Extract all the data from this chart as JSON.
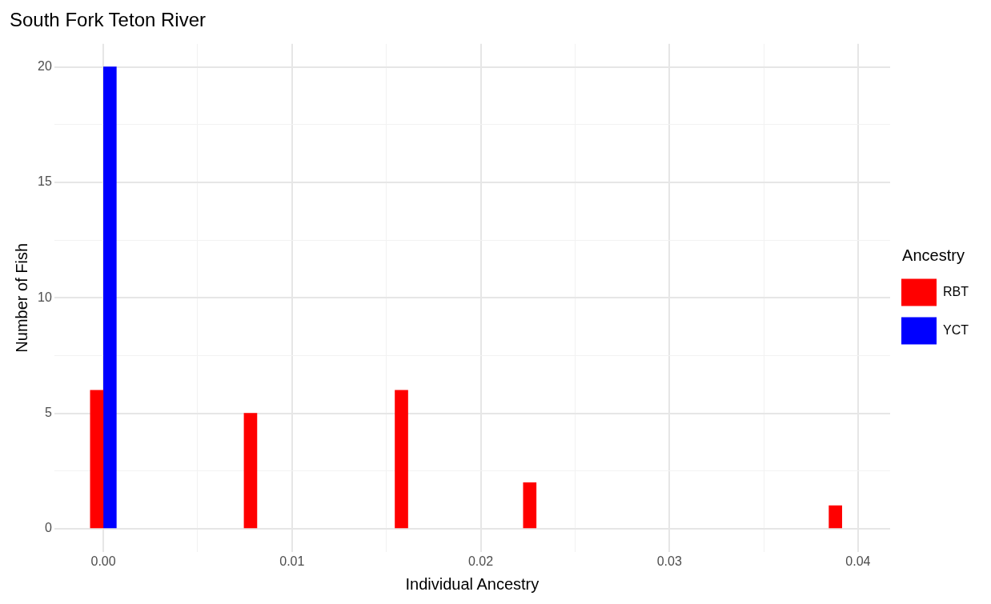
{
  "chart_data": {
    "type": "bar",
    "title": "South Fork Teton River",
    "xlabel": "Individual Ancestry",
    "ylabel": "Number of Fish",
    "legend_title": "Ancestry",
    "series": [
      {
        "name": "RBT",
        "color": "#ff0000",
        "x": [
          -0.00035,
          0.0078,
          0.0158,
          0.0226,
          0.0388
        ],
        "values": [
          6,
          5,
          6,
          2,
          1
        ]
      },
      {
        "name": "YCT",
        "color": "#0000ff",
        "x": [
          0.00035
        ],
        "values": [
          20
        ]
      }
    ],
    "xlim": [
      -0.0026,
      0.0417
    ],
    "xticks": [
      {
        "value": 0,
        "label": "0.00"
      },
      {
        "value": 0.005,
        "label": null
      },
      {
        "value": 0.01,
        "label": "0.01"
      },
      {
        "value": 0.015,
        "label": null
      },
      {
        "value": 0.02,
        "label": "0.02"
      },
      {
        "value": 0.025,
        "label": null
      },
      {
        "value": 0.03,
        "label": "0.03"
      },
      {
        "value": 0.035,
        "label": null
      },
      {
        "value": 0.04,
        "label": "0.04"
      }
    ],
    "ylim": [
      -1,
      21
    ],
    "yticks": [
      0,
      {
        "value": 2.5,
        "label": null
      },
      5,
      {
        "value": 7.5,
        "label": null
      },
      10,
      {
        "value": 12.5,
        "label": null
      },
      15,
      {
        "value": 17.5,
        "label": null
      },
      20
    ],
    "grid": true,
    "legend": "right"
  }
}
